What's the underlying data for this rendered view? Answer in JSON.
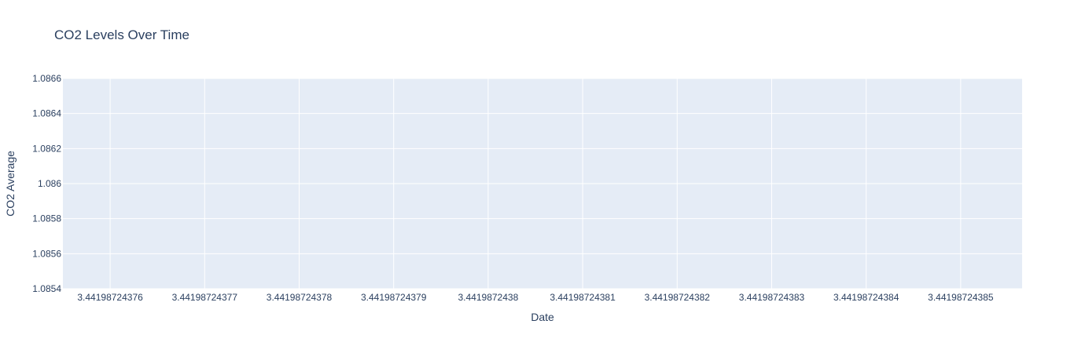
{
  "chart_data": {
    "type": "line",
    "title": "CO2 Levels Over Time",
    "xlabel": "Date",
    "ylabel": "CO2 Average",
    "xlim": [
      3.441987243755,
      3.4419872438565
    ],
    "ylim": [
      1.0854,
      1.0866
    ],
    "x_ticks": [
      3.44198724376,
      3.44198724377,
      3.44198724378,
      3.44198724379,
      3.4419872438,
      3.44198724381,
      3.44198724382,
      3.44198724383,
      3.44198724384,
      3.44198724385
    ],
    "x_tick_labels": [
      "3.44198724376",
      "3.44198724377",
      "3.44198724378",
      "3.44198724379",
      "3.4419872438",
      "3.44198724381",
      "3.44198724382",
      "3.44198724383",
      "3.44198724384",
      "3.44198724385"
    ],
    "y_ticks": [
      1.0854,
      1.0856,
      1.0858,
      1.086,
      1.0862,
      1.0864,
      1.0866
    ],
    "y_tick_labels": [
      "1.0854",
      "1.0856",
      "1.0858",
      "1.086",
      "1.0862",
      "1.0864",
      "1.0866"
    ],
    "series": [],
    "grid": true,
    "legend": false,
    "colors": {
      "plot_background": "#e5ecf6",
      "grid": "#ffffff",
      "text": "#2a3f5f"
    }
  }
}
